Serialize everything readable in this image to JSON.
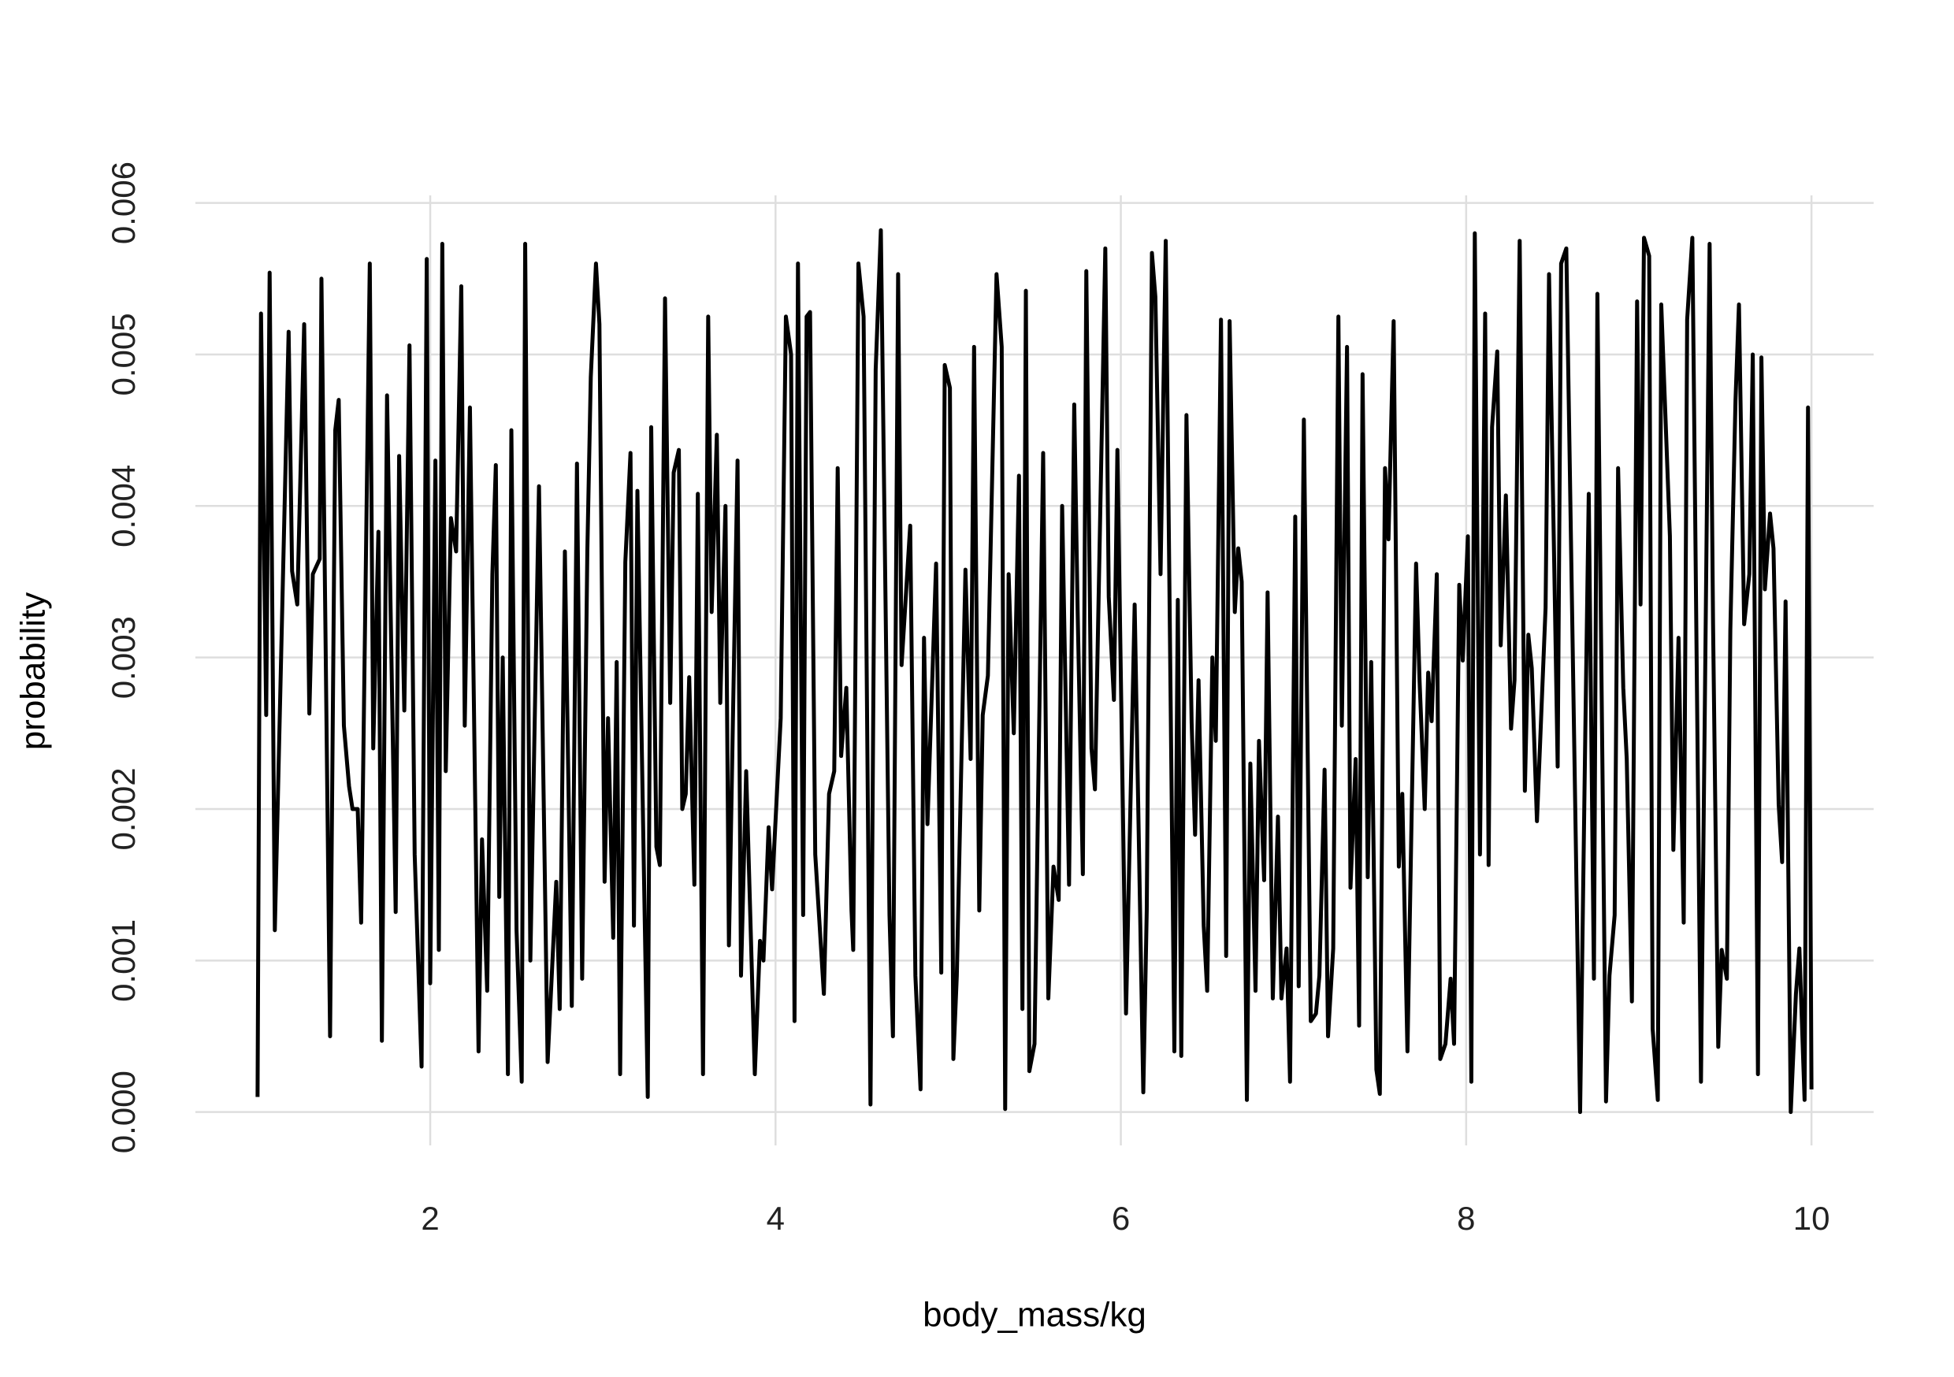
{
  "chart_data": {
    "type": "line",
    "x_label": "body_mass/kg",
    "y_label": "probability",
    "xlim": [
      0.64,
      10.36
    ],
    "ylim": [
      -0.00022,
      0.00605
    ],
    "xticks": [
      2,
      4,
      6,
      8,
      10
    ],
    "yticks": [
      {
        "value": 0,
        "label": "0.000"
      },
      {
        "value": 0.001,
        "label": "0.001"
      },
      {
        "value": 0.002,
        "label": "0.002"
      },
      {
        "value": 0.003,
        "label": "0.003"
      },
      {
        "value": 0.004,
        "label": "0.004"
      },
      {
        "value": 0.005,
        "label": "0.005"
      },
      {
        "value": 0.006,
        "label": "0.006"
      }
    ],
    "grid": true,
    "series": [
      {
        "color": "#000000",
        "x": [
          1.0,
          1.02,
          1.05,
          1.07,
          1.1,
          1.18,
          1.2,
          1.23,
          1.27,
          1.3,
          1.32,
          1.36,
          1.37,
          1.42,
          1.45,
          1.47,
          1.5,
          1.53,
          1.55,
          1.58,
          1.6,
          1.65,
          1.67,
          1.7,
          1.72,
          1.75,
          1.8,
          1.82,
          1.85,
          1.88,
          1.91,
          1.95,
          1.98,
          2.0,
          2.03,
          2.05,
          2.07,
          2.09,
          2.12,
          2.15,
          2.18,
          2.2,
          2.23,
          2.28,
          2.3,
          2.33,
          2.36,
          2.38,
          2.4,
          2.42,
          2.45,
          2.47,
          2.5,
          2.53,
          2.55,
          2.58,
          2.63,
          2.68,
          2.73,
          2.75,
          2.78,
          2.82,
          2.85,
          2.88,
          2.91,
          2.93,
          2.96,
          2.98,
          3.01,
          3.03,
          3.06,
          3.08,
          3.1,
          3.13,
          3.16,
          3.18,
          3.2,
          3.26,
          3.28,
          3.31,
          3.33,
          3.36,
          3.39,
          3.41,
          3.44,
          3.46,
          3.48,
          3.5,
          3.53,
          3.55,
          3.58,
          3.61,
          3.63,
          3.66,
          3.68,
          3.71,
          3.73,
          3.78,
          3.8,
          3.83,
          3.88,
          3.91,
          3.93,
          3.96,
          3.98,
          4.03,
          4.06,
          4.09,
          4.11,
          4.13,
          4.16,
          4.18,
          4.2,
          4.23,
          4.28,
          4.31,
          4.34,
          4.36,
          4.38,
          4.41,
          4.44,
          4.45,
          4.48,
          4.51,
          4.55,
          4.58,
          4.61,
          4.66,
          4.68,
          4.71,
          4.73,
          4.78,
          4.81,
          4.84,
          4.86,
          4.88,
          4.93,
          4.96,
          4.98,
          5.01,
          5.03,
          5.05,
          5.1,
          5.13,
          5.15,
          5.18,
          5.2,
          5.23,
          5.28,
          5.31,
          5.33,
          5.35,
          5.38,
          5.41,
          5.43,
          5.45,
          5.47,
          5.5,
          5.55,
          5.58,
          5.61,
          5.64,
          5.66,
          5.7,
          5.73,
          5.75,
          5.78,
          5.8,
          5.83,
          5.85,
          5.91,
          5.93,
          5.96,
          5.98,
          6.01,
          6.03,
          6.08,
          6.13,
          6.15,
          6.18,
          6.2,
          6.23,
          6.26,
          6.31,
          6.33,
          6.35,
          6.38,
          6.41,
          6.43,
          6.45,
          6.48,
          6.5,
          6.53,
          6.55,
          6.58,
          6.61,
          6.63,
          6.66,
          6.68,
          6.7,
          6.73,
          6.75,
          6.78,
          6.8,
          6.83,
          6.85,
          6.88,
          6.91,
          6.93,
          6.96,
          6.98,
          7.01,
          7.03,
          7.06,
          7.1,
          7.13,
          7.15,
          7.18,
          7.2,
          7.23,
          7.26,
          7.28,
          7.31,
          7.33,
          7.36,
          7.38,
          7.4,
          7.43,
          7.45,
          7.48,
          7.5,
          7.53,
          7.55,
          7.58,
          7.61,
          7.63,
          7.66,
          7.71,
          7.73,
          7.76,
          7.78,
          7.8,
          7.83,
          7.85,
          7.88,
          7.91,
          7.93,
          7.96,
          7.98,
          8.01,
          8.03,
          8.05,
          8.08,
          8.11,
          8.13,
          8.15,
          8.18,
          8.2,
          8.23,
          8.26,
          8.28,
          8.31,
          8.34,
          8.36,
          8.38,
          8.41,
          8.46,
          8.48,
          8.51,
          8.53,
          8.55,
          8.58,
          8.66,
          8.69,
          8.71,
          8.74,
          8.76,
          8.81,
          8.83,
          8.86,
          8.88,
          8.91,
          8.93,
          8.96,
          8.99,
          9.01,
          9.03,
          9.06,
          9.08,
          9.11,
          9.13,
          9.18,
          9.2,
          9.23,
          9.26,
          9.28,
          9.31,
          9.36,
          9.41,
          9.43,
          9.46,
          9.48,
          9.51,
          9.53,
          9.56,
          9.58,
          9.61,
          9.64,
          9.66,
          9.69,
          9.71,
          9.73,
          9.76,
          9.78,
          9.81,
          9.83,
          9.85,
          9.88,
          9.91,
          9.93,
          9.96,
          9.98,
          10.0
        ],
        "values": [
          0.0001,
          0.00527,
          0.00262,
          0.00554,
          0.0012,
          0.00515,
          0.00357,
          0.00335,
          0.0052,
          0.00263,
          0.00355,
          0.00365,
          0.0055,
          0.0005,
          0.0045,
          0.0047,
          0.00255,
          0.00215,
          0.002,
          0.002,
          0.00125,
          0.0056,
          0.0024,
          0.00383,
          0.00047,
          0.00473,
          0.00132,
          0.00433,
          0.00265,
          0.00506,
          0.0017,
          0.0003,
          0.00563,
          0.00085,
          0.0043,
          0.00107,
          0.00573,
          0.00225,
          0.00392,
          0.0037,
          0.00545,
          0.00255,
          0.00465,
          0.0004,
          0.0018,
          0.0008,
          0.00355,
          0.00427,
          0.00142,
          0.003,
          0.00025,
          0.0045,
          0.0012,
          0.0002,
          0.00573,
          0.001,
          0.00413,
          0.00033,
          0.00152,
          0.00068,
          0.0037,
          0.0007,
          0.00428,
          0.00088,
          0.0037,
          0.00485,
          0.0056,
          0.0052,
          0.00152,
          0.0026,
          0.00115,
          0.00297,
          0.00025,
          0.00363,
          0.00435,
          0.00123,
          0.0041,
          0.0001,
          0.00452,
          0.00175,
          0.00163,
          0.00537,
          0.0027,
          0.00422,
          0.00437,
          0.002,
          0.0021,
          0.00287,
          0.0015,
          0.00408,
          0.00025,
          0.00525,
          0.0033,
          0.00447,
          0.0027,
          0.004,
          0.0011,
          0.0043,
          0.0009,
          0.00225,
          0.00025,
          0.00113,
          0.001,
          0.00188,
          0.00147,
          0.0026,
          0.00525,
          0.005,
          0.0006,
          0.0056,
          0.0013,
          0.00525,
          0.00528,
          0.0017,
          0.00078,
          0.0021,
          0.00225,
          0.00425,
          0.00235,
          0.0028,
          0.00133,
          0.00107,
          0.0056,
          0.00525,
          5e-05,
          0.0049,
          0.00582,
          0.0013,
          0.0005,
          0.00553,
          0.00295,
          0.00387,
          0.0009,
          0.00015,
          0.00313,
          0.0019,
          0.00362,
          0.00092,
          0.00493,
          0.00478,
          0.00035,
          0.0009,
          0.00358,
          0.00233,
          0.00505,
          0.00133,
          0.00262,
          0.00288,
          0.00553,
          0.00505,
          2e-05,
          0.00355,
          0.0025,
          0.0042,
          0.00068,
          0.00542,
          0.00027,
          0.00045,
          0.00435,
          0.00075,
          0.00162,
          0.0014,
          0.004,
          0.0015,
          0.00467,
          0.0033,
          0.00157,
          0.00555,
          0.0024,
          0.00213,
          0.0057,
          0.0034,
          0.00272,
          0.00437,
          0.00213,
          0.00065,
          0.00335,
          0.00013,
          0.00133,
          0.00567,
          0.00538,
          0.00355,
          0.00575,
          0.0004,
          0.00338,
          0.00037,
          0.0046,
          0.00257,
          0.00183,
          0.00285,
          0.00123,
          0.0008,
          0.003,
          0.00245,
          0.00523,
          0.00103,
          0.00522,
          0.0033,
          0.00372,
          0.0035,
          8e-05,
          0.0023,
          0.0008,
          0.00245,
          0.00153,
          0.00343,
          0.00075,
          0.00195,
          0.00075,
          0.00108,
          0.0002,
          0.00393,
          0.00083,
          0.00457,
          0.0006,
          0.00065,
          0.0009,
          0.00226,
          0.0005,
          0.00108,
          0.00525,
          0.00255,
          0.00505,
          0.00148,
          0.00233,
          0.00057,
          0.00487,
          0.00155,
          0.00297,
          0.00028,
          0.00012,
          0.00425,
          0.00378,
          0.00522,
          0.00162,
          0.0021,
          0.0004,
          0.00362,
          0.00285,
          0.002,
          0.0029,
          0.00258,
          0.00355,
          0.00035,
          0.00045,
          0.00088,
          0.00045,
          0.00348,
          0.00298,
          0.0038,
          0.0002,
          0.0058,
          0.0017,
          0.00527,
          0.00163,
          0.00452,
          0.00502,
          0.00308,
          0.00407,
          0.00253,
          0.00285,
          0.00575,
          0.00212,
          0.00315,
          0.00293,
          0.00192,
          0.00333,
          0.00553,
          0.00362,
          0.00228,
          0.0056,
          0.0057,
          0.0,
          0.0025,
          0.00408,
          0.00088,
          0.0054,
          7e-05,
          0.0009,
          0.0013,
          0.00425,
          0.0028,
          0.00233,
          0.00073,
          0.00535,
          0.00335,
          0.00577,
          0.00565,
          0.00055,
          8e-05,
          0.00533,
          0.0038,
          0.00173,
          0.00313,
          0.00125,
          0.00523,
          0.00577,
          0.0002,
          0.00573,
          0.00322,
          0.00043,
          0.00107,
          0.00088,
          0.00318,
          0.0047,
          0.00533,
          0.00322,
          0.00355,
          0.005,
          0.00025,
          0.00498,
          0.00345,
          0.00395,
          0.00372,
          0.00203,
          0.00165,
          0.00337,
          0.0,
          0.00078,
          0.00108,
          8e-05,
          0.00465,
          0.00015
        ]
      }
    ]
  }
}
